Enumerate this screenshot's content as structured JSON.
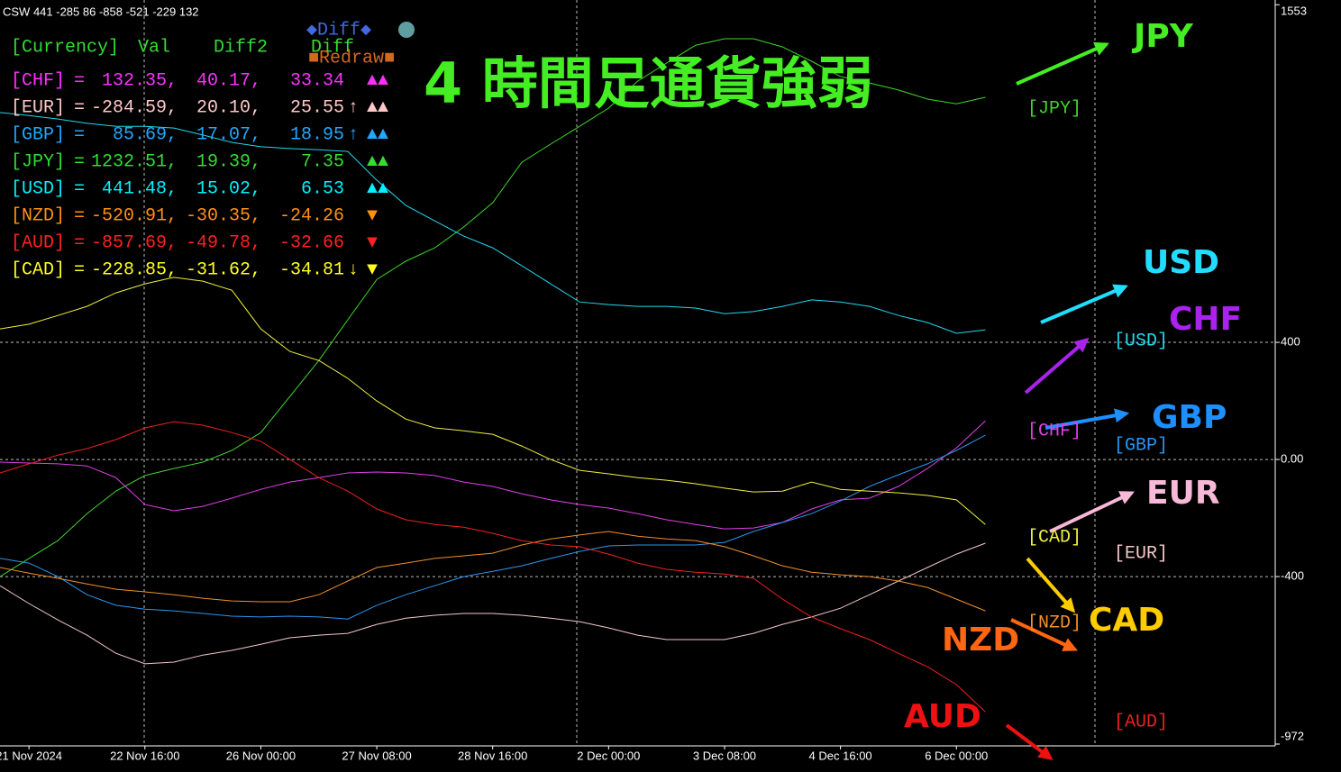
{
  "chart_data": {
    "type": "line",
    "title": "4 時間足通貨強弱",
    "subtitle": "CSW 441 -285 86 -858 -521 -229 132",
    "xlim": [
      0,
      44
    ],
    "xticks": [
      {
        "value": 1,
        "label": "21 Nov 2024"
      },
      {
        "value": 5,
        "label": "22 Nov 16:00"
      },
      {
        "value": 9,
        "label": "26 Nov 00:00"
      },
      {
        "value": 13,
        "label": "27 Nov 08:00"
      },
      {
        "value": 17,
        "label": "28 Nov 16:00"
      },
      {
        "value": 21,
        "label": "2 Dec 00:00"
      },
      {
        "value": 25,
        "label": "3 Dec 08:00"
      },
      {
        "value": 29,
        "label": "4 Dec 16:00"
      },
      {
        "value": 33,
        "label": "6 Dec 00:00"
      }
    ],
    "ylim": [
      -972,
      1553
    ],
    "yticks": [
      1553,
      400,
      {
        "value": 0,
        "label": "0.00"
      },
      -400,
      -972
    ],
    "grid": true,
    "series": [
      {
        "name": "[JPY]",
        "color": "#3fd62a",
        "values": [
          -400,
          -338,
          -277,
          -185,
          -108,
          -55,
          -31,
          -9,
          31,
          92,
          215,
          338,
          477,
          615,
          677,
          723,
          794,
          877,
          1015,
          1077,
          1138,
          1200,
          1292,
          1354,
          1415,
          1437,
          1437,
          1409,
          1360,
          1308,
          1286,
          1262,
          1231,
          1215,
          1237
        ]
      },
      {
        "name": "[USD]",
        "color": "#22d8ee",
        "values": [
          1185,
          1175,
          1163,
          1148,
          1138,
          1138,
          1132,
          1108,
          1083,
          1068,
          1062,
          1058,
          1052,
          954,
          868,
          815,
          763,
          723,
          662,
          600,
          538,
          529,
          523,
          523,
          517,
          498,
          505,
          523,
          545,
          538,
          523,
          492,
          468,
          431,
          443
        ]
      },
      {
        "name": "[CHF]",
        "color": "#e040e8",
        "values": [
          -9,
          -12,
          -15,
          -22,
          -62,
          -154,
          -175,
          -160,
          -132,
          -102,
          -77,
          -62,
          -46,
          -43,
          -46,
          -55,
          -77,
          -92,
          -117,
          -138,
          -154,
          -166,
          -185,
          -206,
          -222,
          -237,
          -234,
          -215,
          -169,
          -138,
          -132,
          -92,
          -31,
          40,
          132
        ]
      },
      {
        "name": "[GBP]",
        "color": "#2a96f0",
        "values": [
          -338,
          -354,
          -400,
          -462,
          -498,
          -511,
          -517,
          -526,
          -535,
          -538,
          -535,
          -538,
          -545,
          -498,
          -462,
          -431,
          -400,
          -382,
          -363,
          -338,
          -314,
          -295,
          -292,
          -292,
          -292,
          -283,
          -246,
          -215,
          -185,
          -142,
          -92,
          -52,
          -15,
          31,
          83
        ]
      },
      {
        "name": "[CAD]",
        "color": "#f0f040",
        "values": [
          446,
          462,
          492,
          523,
          569,
          600,
          622,
          609,
          578,
          446,
          369,
          338,
          277,
          200,
          138,
          108,
          98,
          86,
          46,
          0,
          -37,
          -49,
          -62,
          -71,
          -83,
          -98,
          -111,
          -108,
          -77,
          -102,
          -108,
          -114,
          -123,
          -138,
          -222
        ]
      },
      {
        "name": "[EUR]",
        "color": "#f4c8c8",
        "values": [
          -431,
          -492,
          -548,
          -600,
          -662,
          -698,
          -692,
          -668,
          -652,
          -631,
          -609,
          -600,
          -594,
          -563,
          -542,
          -532,
          -526,
          -526,
          -532,
          -542,
          -554,
          -575,
          -600,
          -615,
          -615,
          -615,
          -594,
          -563,
          -538,
          -508,
          -462,
          -415,
          -369,
          -323,
          -286
        ]
      },
      {
        "name": "[NZD]",
        "color": "#f0902a",
        "values": [
          -369,
          -388,
          -406,
          -425,
          -443,
          -452,
          -462,
          -474,
          -483,
          -486,
          -486,
          -462,
          -415,
          -369,
          -354,
          -338,
          -329,
          -320,
          -292,
          -271,
          -258,
          -246,
          -262,
          -271,
          -277,
          -298,
          -329,
          -363,
          -385,
          -394,
          -400,
          -415,
          -437,
          -477,
          -517
        ]
      },
      {
        "name": "[AUD]",
        "color": "#ee2020",
        "values": [
          -46,
          -15,
          15,
          37,
          68,
          108,
          129,
          117,
          92,
          62,
          0,
          -62,
          -108,
          -169,
          -206,
          -222,
          -231,
          -252,
          -277,
          -292,
          -298,
          -323,
          -354,
          -375,
          -385,
          -391,
          -406,
          -477,
          -538,
          -578,
          -615,
          -662,
          -708,
          -769,
          -862
        ]
      }
    ],
    "annotations": [
      {
        "text": "JPY",
        "color": "#44ee22"
      },
      {
        "text": "USD",
        "color": "#22ddff"
      },
      {
        "text": "CHF",
        "color": "#aa22ee"
      },
      {
        "text": "GBP",
        "color": "#1e8fff"
      },
      {
        "text": "EUR",
        "color": "#f8b8d8"
      },
      {
        "text": "CAD",
        "color": "#ffcc00"
      },
      {
        "text": "NZD",
        "color": "#ff6611"
      },
      {
        "text": "AUD",
        "color": "#ee1111"
      }
    ]
  },
  "panel": {
    "buttons": [
      "◆Diff◆",
      "■Redraw■"
    ],
    "header": [
      "[Currency]",
      "Val",
      "Diff2",
      "Diff"
    ],
    "rows": [
      {
        "currency": "[CHF]",
        "eq": "=",
        "val": "132.35,",
        "diff2": "40.17,",
        "diff": "33.34",
        "signal": "▲▲",
        "color": "#ff30ff"
      },
      {
        "currency": "[EUR]",
        "eq": "=",
        "val": "-284.59,",
        "diff2": "20.10,",
        "diff": "25.55",
        "trend": "↑",
        "signal": "▲▲",
        "color": "#ffc8c8"
      },
      {
        "currency": "[GBP]",
        "eq": "=",
        "val": "85.69,",
        "diff2": "17.07,",
        "diff": "18.95",
        "trend": "↑",
        "signal": "▲▲",
        "color": "#20a8ff"
      },
      {
        "currency": "[JPY]",
        "eq": "=",
        "val": "1232.51,",
        "diff2": "19.39,",
        "diff": "7.35",
        "signal": "▲▲",
        "color": "#33dd33"
      },
      {
        "currency": "[USD]",
        "eq": "=",
        "val": "441.48,",
        "diff2": "15.02,",
        "diff": "6.53",
        "signal": "▲▲",
        "color": "#00f0ff"
      },
      {
        "currency": "[NZD]",
        "eq": "=",
        "val": "-520.91,",
        "diff2": "-30.35,",
        "diff": "-24.26",
        "signal": "▼",
        "color": "#ff9010"
      },
      {
        "currency": "[AUD]",
        "eq": "=",
        "val": "-857.69,",
        "diff2": "-49.78,",
        "diff": "-32.66",
        "signal": "▼",
        "color": "#ff2020"
      },
      {
        "currency": "[CAD]",
        "eq": "=",
        "val": "-228.85,",
        "diff2": "-31.62,",
        "diff": "-34.81",
        "trend": "↓",
        "signal": "▼",
        "color": "#ffff20"
      }
    ]
  }
}
